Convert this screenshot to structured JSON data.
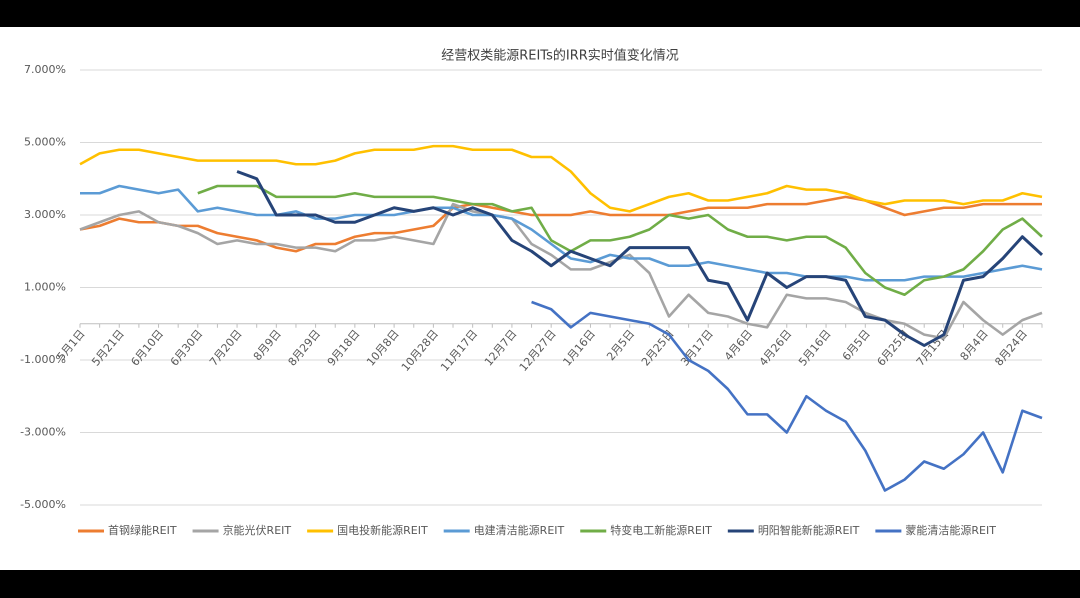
{
  "chart_data": {
    "type": "line",
    "title": "经营权类能源REITs的IRR实时值变化情况",
    "categories": [
      "5月1日",
      null,
      "5月21日",
      null,
      "6月10日",
      null,
      "6月30日",
      null,
      "7月20日",
      null,
      "8月9日",
      null,
      "8月29日",
      null,
      "9月18日",
      null,
      "10月8日",
      null,
      "10月28日",
      null,
      "11月17日",
      null,
      "12月7日",
      null,
      "12月27日",
      null,
      "1月16日",
      null,
      "2月5日",
      null,
      "2月25日",
      null,
      "3月17日",
      null,
      "4月6日",
      null,
      "4月26日",
      null,
      "5月16日",
      null,
      "6月5日",
      null,
      "6月25日",
      null,
      "7月15日",
      null,
      "8月4日",
      null,
      "8月24日",
      null
    ],
    "ylim": [
      -5,
      7
    ],
    "yticks": [
      {
        "value": -5,
        "label": "-5.000%"
      },
      {
        "value": -3,
        "label": "-3.000%"
      },
      {
        "value": -1,
        "label": "-1.000%"
      },
      {
        "value": 1,
        "label": "1.000%"
      },
      {
        "value": 3,
        "label": "3.000%"
      },
      {
        "value": 5,
        "label": "5.000%"
      },
      {
        "value": 7,
        "label": "7.000%"
      }
    ],
    "grid": true,
    "legend": "bottom",
    "series": [
      {
        "name": "首钢绿能REIT",
        "color": "#ED7D31",
        "values": [
          2.6,
          2.7,
          2.9,
          2.8,
          2.8,
          2.7,
          2.7,
          2.5,
          2.4,
          2.3,
          2.1,
          2.0,
          2.2,
          2.2,
          2.4,
          2.5,
          2.5,
          2.6,
          2.7,
          3.2,
          3.3,
          3.2,
          3.1,
          3.0,
          3.0,
          3.0,
          3.1,
          3.0,
          3.0,
          3.0,
          3.0,
          3.1,
          3.2,
          3.2,
          3.2,
          3.3,
          3.3,
          3.3,
          3.4,
          3.5,
          3.4,
          3.2,
          3.0,
          3.1,
          3.2,
          3.2,
          3.3,
          3.3,
          3.3,
          3.3
        ]
      },
      {
        "name": "京能光伏REIT",
        "color": "#A5A5A5",
        "values": [
          2.6,
          2.8,
          3.0,
          3.1,
          2.8,
          2.7,
          2.5,
          2.2,
          2.3,
          2.2,
          2.2,
          2.1,
          2.1,
          2.0,
          2.3,
          2.3,
          2.4,
          2.3,
          2.2,
          3.3,
          3.1,
          3.0,
          2.9,
          2.2,
          1.9,
          1.5,
          1.5,
          1.7,
          1.9,
          1.4,
          0.2,
          0.8,
          0.3,
          0.2,
          0.0,
          -0.1,
          0.8,
          0.7,
          0.7,
          0.6,
          0.3,
          0.1,
          0.0,
          -0.3,
          -0.4,
          0.6,
          0.1,
          -0.3,
          0.1,
          0.3
        ]
      },
      {
        "name": "国电投新能源REIT",
        "color": "#FFC000",
        "values": [
          4.4,
          4.7,
          4.8,
          4.8,
          4.7,
          4.6,
          4.5,
          4.5,
          4.5,
          4.5,
          4.5,
          4.4,
          4.4,
          4.5,
          4.7,
          4.8,
          4.8,
          4.8,
          4.9,
          4.9,
          4.8,
          4.8,
          4.8,
          4.6,
          4.6,
          4.2,
          3.6,
          3.2,
          3.1,
          3.3,
          3.5,
          3.6,
          3.4,
          3.4,
          3.5,
          3.6,
          3.8,
          3.7,
          3.7,
          3.6,
          3.4,
          3.3,
          3.4,
          3.4,
          3.4,
          3.3,
          3.4,
          3.4,
          3.6,
          3.5
        ]
      },
      {
        "name": "电建清洁能源REIT",
        "color": "#5B9BD5",
        "values": [
          3.6,
          3.6,
          3.8,
          3.7,
          3.6,
          3.7,
          3.1,
          3.2,
          3.1,
          3.0,
          3.0,
          3.1,
          2.9,
          2.9,
          3.0,
          3.0,
          3.0,
          3.1,
          3.2,
          3.2,
          3.0,
          3.0,
          2.9,
          2.6,
          2.2,
          1.8,
          1.7,
          1.9,
          1.8,
          1.8,
          1.6,
          1.6,
          1.7,
          1.6,
          1.5,
          1.4,
          1.4,
          1.3,
          1.3,
          1.3,
          1.2,
          1.2,
          1.2,
          1.3,
          1.3,
          1.3,
          1.4,
          1.5,
          1.6,
          1.5
        ]
      },
      {
        "name": "特变电工新能源REIT",
        "color": "#70AD47",
        "values": [
          null,
          null,
          null,
          null,
          null,
          null,
          3.6,
          3.8,
          3.8,
          3.8,
          3.5,
          3.5,
          3.5,
          3.5,
          3.6,
          3.5,
          3.5,
          3.5,
          3.5,
          3.4,
          3.3,
          3.3,
          3.1,
          3.2,
          2.3,
          2.0,
          2.3,
          2.3,
          2.4,
          2.6,
          3.0,
          2.9,
          3.0,
          2.6,
          2.4,
          2.4,
          2.3,
          2.4,
          2.4,
          2.1,
          1.4,
          1.0,
          0.8,
          1.2,
          1.3,
          1.5,
          2.0,
          2.6,
          2.9,
          2.4
        ]
      },
      {
        "name": "明阳智能新能源REIT",
        "color": "#264478",
        "values": [
          null,
          null,
          null,
          null,
          null,
          null,
          null,
          null,
          4.2,
          4.0,
          3.0,
          3.0,
          3.0,
          2.8,
          2.8,
          3.0,
          3.2,
          3.1,
          3.2,
          3.0,
          3.2,
          3.0,
          2.3,
          2.0,
          1.6,
          2.0,
          1.8,
          1.6,
          2.1,
          2.1,
          2.1,
          2.1,
          1.2,
          1.1,
          0.1,
          1.4,
          1.0,
          1.3,
          1.3,
          1.2,
          0.2,
          0.1,
          -0.3,
          -0.6,
          -0.3,
          1.2,
          1.3,
          1.8,
          2.4,
          1.9
        ]
      },
      {
        "name": "蒙能清洁能源REIT",
        "color": "#4472C4",
        "values": [
          null,
          null,
          null,
          null,
          null,
          null,
          null,
          null,
          null,
          null,
          null,
          null,
          null,
          null,
          null,
          null,
          null,
          null,
          null,
          null,
          null,
          null,
          null,
          0.6,
          0.4,
          -0.1,
          0.3,
          0.2,
          0.1,
          0.0,
          -0.3,
          -1.0,
          -1.3,
          -1.8,
          -2.5,
          -2.5,
          -3.0,
          -2.0,
          -2.4,
          -2.7,
          -3.5,
          -4.6,
          -4.3,
          -3.8,
          -4.0,
          -3.6,
          -3.0,
          -4.1,
          -2.4,
          -2.6
        ]
      }
    ]
  }
}
